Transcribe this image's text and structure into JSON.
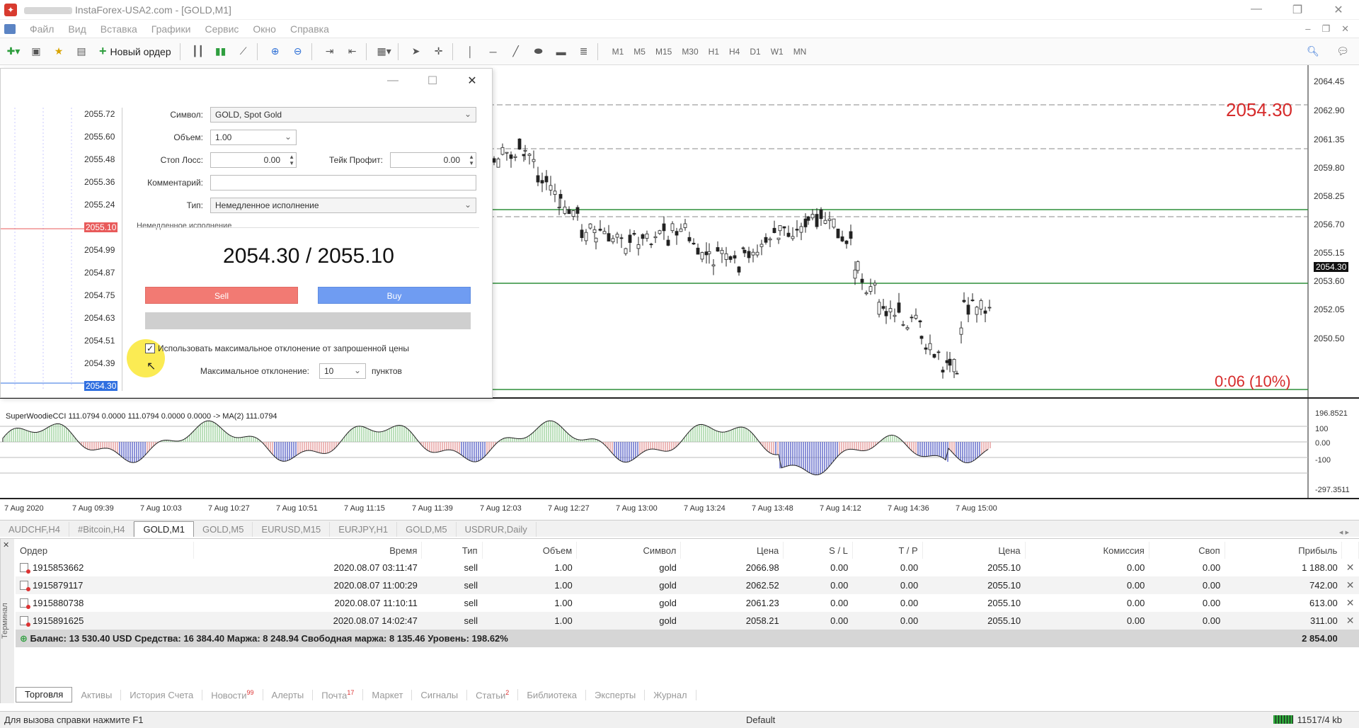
{
  "window": {
    "title": "InstaForex-USA2.com - [GOLD,M1]",
    "controls": [
      "—",
      "❐",
      "✕"
    ]
  },
  "menu": [
    "Файл",
    "Вид",
    "Вставка",
    "Графики",
    "Сервис",
    "Окно",
    "Справка"
  ],
  "toolbar": {
    "new_order": "Новый ордер",
    "timeframes": [
      "M1",
      "M5",
      "M15",
      "M30",
      "H1",
      "H4",
      "D1",
      "W1",
      "MN"
    ]
  },
  "chart": {
    "symbol": "GOLD,M1",
    "bid_marker": "2054.30",
    "timer": "0:06 (10%)",
    "price_axis": [
      "2064.45",
      "2062.90",
      "2061.35",
      "2059.80",
      "2058.25",
      "2056.70",
      "2055.15",
      "2054.30",
      "2053.60",
      "2052.05",
      "2050.50"
    ],
    "indicator_label": "SuperWoodieCCI 111.0794 0.0000 111.0794 0.0000 0.0000 -> MA(2) 111.0794",
    "indicator_axis": [
      "196.8521",
      "100",
      "0.00",
      "-100",
      "-297.3511"
    ],
    "time_axis": [
      "7 Aug 2020",
      "7 Aug 09:39",
      "7 Aug 10:03",
      "7 Aug 10:27",
      "7 Aug 10:51",
      "7 Aug 11:15",
      "7 Aug 11:39",
      "7 Aug 12:03",
      "7 Aug 12:27",
      "7 Aug 13:00",
      "7 Aug 13:24",
      "7 Aug 13:48",
      "7 Aug 14:12",
      "7 Aug 14:36",
      "7 Aug 15:00"
    ]
  },
  "order_dialog": {
    "tick_prices": [
      "2055.72",
      "2055.60",
      "2055.48",
      "2055.36",
      "2055.24",
      "2055.10",
      "2054.99",
      "2054.87",
      "2054.75",
      "2054.63",
      "2054.51",
      "2054.39",
      "2054.30"
    ],
    "symbol_label": "Символ:",
    "symbol_value": "GOLD, Spot Gold",
    "volume_label": "Объем:",
    "volume_value": "1.00",
    "sl_label": "Стоп Лосс:",
    "sl_value": "0.00",
    "tp_label": "Тейк Профит:",
    "tp_value": "0.00",
    "comment_label": "Комментарий:",
    "comment_value": "",
    "type_label": "Тип:",
    "type_value": "Немедленное исполнение",
    "section_label": "Немедленное исполнение",
    "price": "2054.30 / 2055.10",
    "sell": "Sell",
    "buy": "Buy",
    "max_dev_checkbox": "Использовать максимальное отклонение от запрошенной цены",
    "max_dev_label": "Максимальное отклонение:",
    "max_dev_value": "10",
    "max_dev_unit": "пунктов"
  },
  "chart_tabs": [
    "AUDCHF,H4",
    "#Bitcoin,H4",
    "GOLD,M1",
    "GOLD,M5",
    "EURUSD,M15",
    "EURJPY,H1",
    "GOLD,M5",
    "USDRUR,Daily"
  ],
  "terminal": {
    "side_label": "Терминал",
    "columns": [
      "Ордер",
      "Время",
      "Тип",
      "Объем",
      "Символ",
      "Цена",
      "S / L",
      "T / P",
      "Цена",
      "Комиссия",
      "Своп",
      "Прибыль"
    ],
    "rows": [
      [
        "1915853662",
        "2020.08.07 03:11:47",
        "sell",
        "1.00",
        "gold",
        "2066.98",
        "0.00",
        "0.00",
        "2055.10",
        "0.00",
        "0.00",
        "1 188.00"
      ],
      [
        "1915879117",
        "2020.08.07 11:00:29",
        "sell",
        "1.00",
        "gold",
        "2062.52",
        "0.00",
        "0.00",
        "2055.10",
        "0.00",
        "0.00",
        "742.00"
      ],
      [
        "1915880738",
        "2020.08.07 11:10:11",
        "sell",
        "1.00",
        "gold",
        "2061.23",
        "0.00",
        "0.00",
        "2055.10",
        "0.00",
        "0.00",
        "613.00"
      ],
      [
        "1915891625",
        "2020.08.07 14:02:47",
        "sell",
        "1.00",
        "gold",
        "2058.21",
        "0.00",
        "0.00",
        "2055.10",
        "0.00",
        "0.00",
        "311.00"
      ]
    ],
    "balance_text": "Баланс: 13 530.40 USD  Средства: 16 384.40  Маржа: 8 248.94  Свободная маржа: 8 135.46  Уровень: 198.62%",
    "total_profit": "2 854.00",
    "tabs": [
      {
        "label": "Торговля",
        "badge": ""
      },
      {
        "label": "Активы",
        "badge": ""
      },
      {
        "label": "История Счета",
        "badge": ""
      },
      {
        "label": "Новости",
        "badge": "99"
      },
      {
        "label": "Алерты",
        "badge": ""
      },
      {
        "label": "Почта",
        "badge": "17"
      },
      {
        "label": "Маркет",
        "badge": ""
      },
      {
        "label": "Сигналы",
        "badge": ""
      },
      {
        "label": "Статьи",
        "badge": "2"
      },
      {
        "label": "Библиотека",
        "badge": ""
      },
      {
        "label": "Эксперты",
        "badge": ""
      },
      {
        "label": "Журнал",
        "badge": ""
      }
    ]
  },
  "status": {
    "help": "Для вызова справки нажмите F1",
    "profile": "Default",
    "traffic": "11517/4 kb"
  }
}
